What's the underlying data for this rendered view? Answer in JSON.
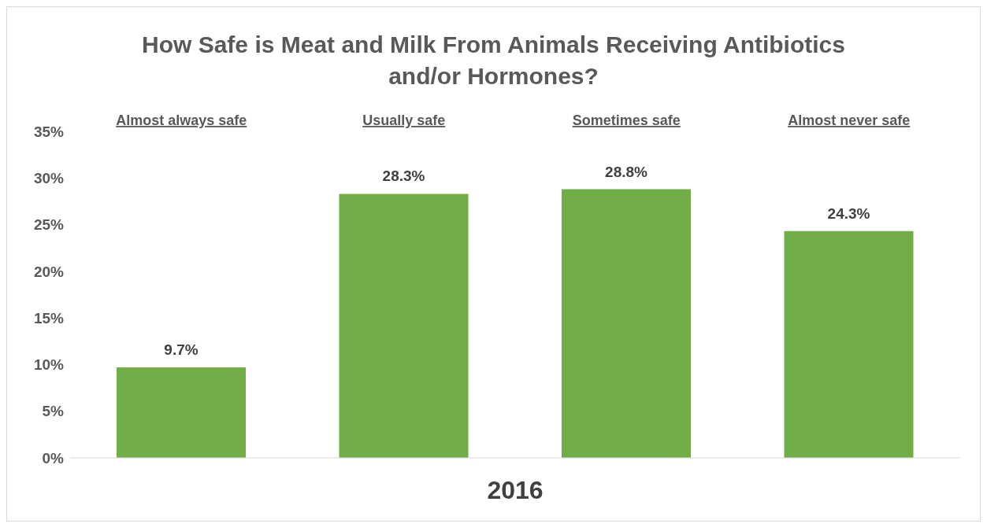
{
  "chart_data": {
    "type": "bar",
    "title": "How Safe is Meat and Milk From Animals Receiving Antibiotics and/or Hormones?",
    "xlabel": "2016",
    "categories": [
      "Almost always safe",
      "Usually safe",
      "Sometimes safe",
      "Almost never safe"
    ],
    "values": [
      9.7,
      28.3,
      28.8,
      24.3
    ],
    "value_labels": [
      "9.7%",
      "28.3%",
      "28.8%",
      "24.3%"
    ],
    "color": "#70ad47",
    "ylim": [
      0,
      35
    ],
    "yticks": [
      {
        "value": 0,
        "label": "0%"
      },
      {
        "value": 5,
        "label": "5%"
      },
      {
        "value": 10,
        "label": "10%"
      },
      {
        "value": 15,
        "label": "15%"
      },
      {
        "value": 20,
        "label": "20%"
      },
      {
        "value": 25,
        "label": "25%"
      },
      {
        "value": 30,
        "label": "30%"
      },
      {
        "value": 35,
        "label": "35%"
      }
    ],
    "grid": false
  }
}
